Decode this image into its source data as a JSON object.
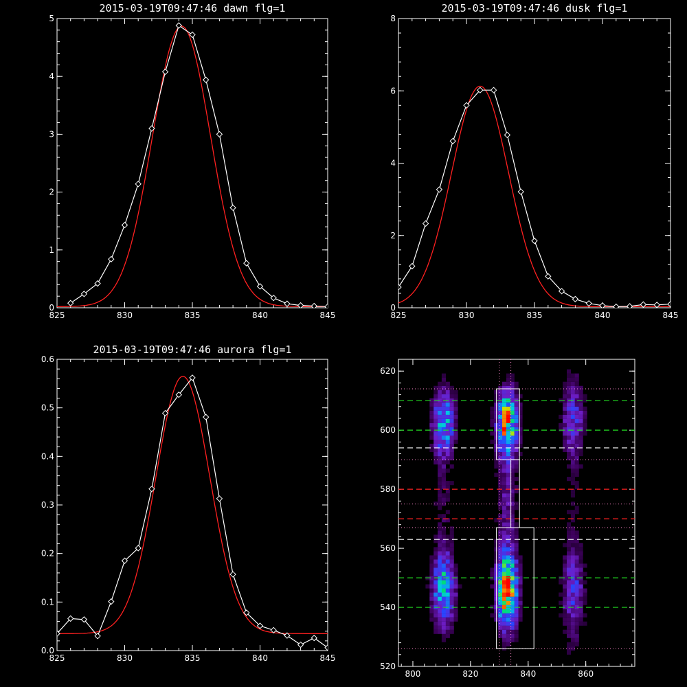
{
  "chart_data": [
    {
      "type": "line",
      "title": "2015-03-19T09:47:46 dawn flg=1",
      "xlim": [
        825,
        845
      ],
      "ylim": [
        0,
        5
      ],
      "xticks": [
        "825",
        "830",
        "835",
        "840",
        "845"
      ],
      "yticks": [
        "0",
        "1",
        "2",
        "3",
        "4",
        "5"
      ],
      "grid": false,
      "series": [
        {
          "x": [
            826,
            827,
            828,
            829,
            830,
            831,
            832,
            833,
            834,
            835,
            836,
            837,
            838,
            839,
            840,
            841,
            842,
            843,
            844,
            845
          ],
          "values": [
            0.08,
            0.24,
            0.42,
            0.84,
            1.43,
            2.14,
            3.1,
            4.08,
            4.88,
            4.72,
            3.94,
            3.0,
            1.73,
            0.77,
            0.37,
            0.17,
            0.07,
            0.04,
            0.03,
            0.02
          ],
          "color": "#ffffff",
          "marker": "diamond"
        },
        {
          "fit": "gaussian",
          "center": 834.2,
          "amplitude": 4.85,
          "sigma": 2.15,
          "offset": 0.02,
          "color": "#ff2020"
        }
      ]
    },
    {
      "type": "line",
      "title": "2015-03-19T09:47:46 dusk flg=1",
      "xlim": [
        825,
        845
      ],
      "ylim": [
        0,
        8
      ],
      "xticks": [
        "825",
        "830",
        "835",
        "840",
        "845"
      ],
      "yticks": [
        "0",
        "2",
        "4",
        "6",
        "8"
      ],
      "grid": false,
      "series": [
        {
          "x": [
            825,
            826,
            827,
            828,
            829,
            830,
            831,
            832,
            833,
            834,
            835,
            836,
            837,
            838,
            839,
            840,
            841,
            842,
            843,
            844,
            845
          ],
          "values": [
            0.57,
            1.15,
            2.33,
            3.27,
            4.61,
            5.6,
            6.02,
            6.02,
            4.78,
            3.21,
            1.85,
            0.87,
            0.46,
            0.24,
            0.12,
            0.06,
            0.03,
            0.04,
            0.09,
            0.08,
            0.1
          ],
          "color": "#ffffff",
          "marker": "diamond"
        },
        {
          "fit": "gaussian",
          "center": 831.0,
          "amplitude": 6.1,
          "sigma": 2.1,
          "offset": 0.03,
          "color": "#ff2020"
        }
      ]
    },
    {
      "type": "line",
      "title": "2015-03-19T09:47:46 aurora flg=1",
      "xlim": [
        825,
        845
      ],
      "ylim": [
        0,
        0.6
      ],
      "xticks": [
        "825",
        "830",
        "835",
        "840",
        "845"
      ],
      "yticks": [
        "0.0",
        "0.1",
        "0.2",
        "0.3",
        "0.4",
        "0.5",
        "0.6"
      ],
      "grid": false,
      "series": [
        {
          "x": [
            825,
            826,
            827,
            828,
            829,
            830,
            831,
            832,
            833,
            834,
            835,
            836,
            837,
            838,
            839,
            840,
            841,
            842,
            843,
            844,
            845
          ],
          "values": [
            0.035,
            0.066,
            0.064,
            0.03,
            0.101,
            0.185,
            0.211,
            0.333,
            0.489,
            0.527,
            0.562,
            0.481,
            0.313,
            0.157,
            0.078,
            0.051,
            0.042,
            0.031,
            0.012,
            0.026,
            0.006
          ],
          "color": "#ffffff",
          "marker": "diamond"
        },
        {
          "fit": "gaussian",
          "center": 834.3,
          "amplitude": 0.53,
          "sigma": 2.0,
          "offset": 0.035,
          "color": "#ff2020"
        }
      ]
    },
    {
      "type": "heatmap",
      "title": "",
      "xlim": [
        795,
        877
      ],
      "ylim": [
        520,
        624
      ],
      "xticks": [
        "800",
        "820",
        "840",
        "860"
      ],
      "yticks": [
        "520",
        "540",
        "560",
        "580",
        "600",
        "620"
      ],
      "colormap": "rainbow-on-black",
      "emission_columns_x": [
        810,
        832,
        855
      ],
      "white_boxes": [
        {
          "x": [
            829,
            842
          ],
          "y": [
            526,
            567
          ]
        },
        {
          "x": [
            829,
            837
          ],
          "y": [
            590,
            614
          ]
        },
        {
          "x": [
            834,
            837
          ],
          "y": [
            567,
            590
          ]
        }
      ],
      "lines": {
        "green_dashed_y": [
          540,
          550,
          600,
          610
        ],
        "white_dashed_y": [
          563,
          594
        ],
        "red_dashed_y": [
          570,
          580
        ],
        "pink_dotted_y": [
          526,
          567,
          575,
          590,
          614
        ],
        "pink_dotted_x": [
          830,
          834
        ]
      },
      "colors": {
        "green": "#22dd22",
        "red": "#ff2020",
        "white": "#ffffff",
        "pink": "#ff88cc"
      }
    }
  ]
}
